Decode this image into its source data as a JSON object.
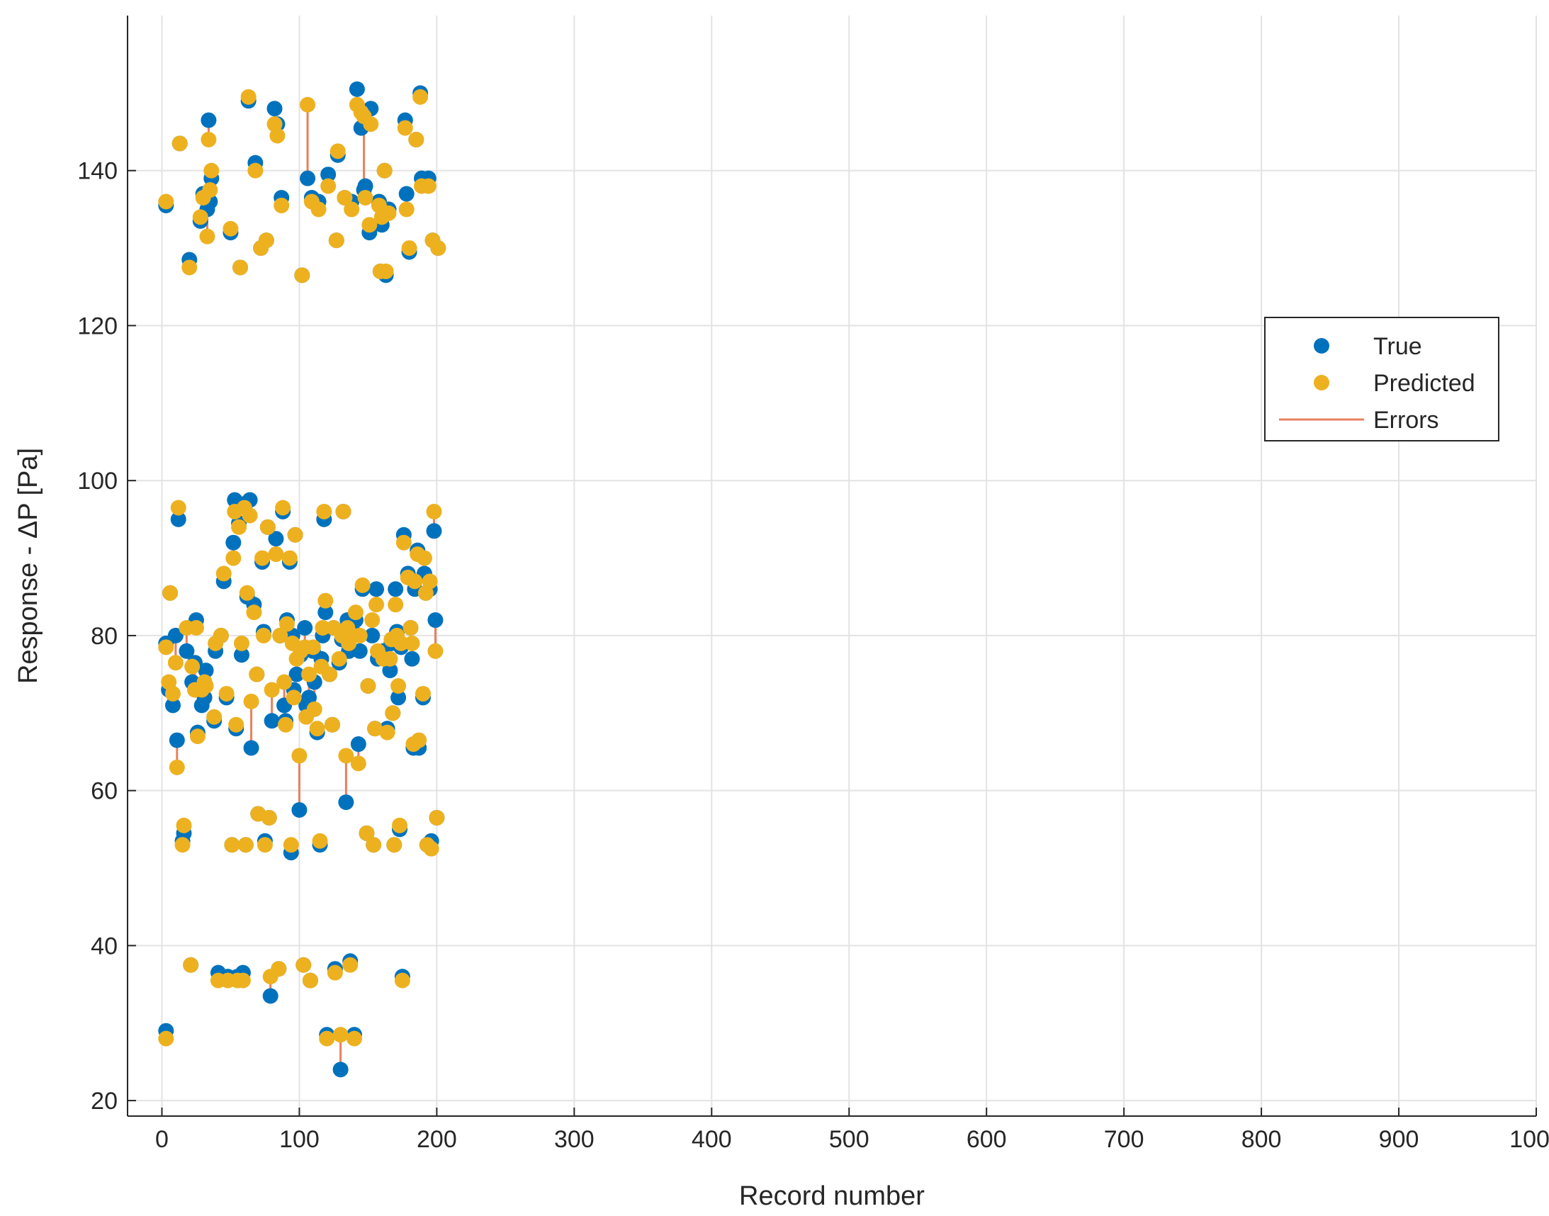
{
  "chart_data": {
    "type": "scatter",
    "title": "",
    "xlabel": "Record number",
    "ylabel": "Response - ΔP [Pa]",
    "xlim": [
      -25,
      1000
    ],
    "ylim": [
      18,
      160
    ],
    "xticks": [
      0,
      100,
      200,
      300,
      400,
      500,
      600,
      700,
      800,
      900,
      1000
    ],
    "yticks": [
      20,
      40,
      60,
      80,
      100,
      120,
      140
    ],
    "xtick_labels": [
      "0",
      "100",
      "200",
      "300",
      "400",
      "500",
      "600",
      "700",
      "800",
      "900",
      "1000"
    ],
    "ytick_labels": [
      "20",
      "40",
      "60",
      "80",
      "100",
      "120",
      "140"
    ],
    "grid": true,
    "legend": {
      "position": "right-middle",
      "entries": [
        {
          "label": "True",
          "color": "#0072BD",
          "marker": "circle"
        },
        {
          "label": "Predicted",
          "color": "#EDB120",
          "marker": "circle"
        },
        {
          "label": "Errors",
          "color": "#E8805C",
          "marker": "line"
        }
      ]
    },
    "colors": {
      "true": "#0072BD",
      "predicted": "#EDB120",
      "errors": "#E8805C",
      "grid": "#e3e3e3",
      "axis": "#262626"
    },
    "series": [
      {
        "name": "True",
        "role": "true"
      },
      {
        "name": "Predicted",
        "role": "predicted"
      },
      {
        "name": "Errors",
        "role": "errors"
      }
    ],
    "points": [
      [
        3,
        135.5,
        136
      ],
      [
        3,
        79,
        78.5
      ],
      [
        3,
        29,
        28
      ],
      [
        5,
        73,
        74
      ],
      [
        6,
        85.5,
        85.5
      ],
      [
        8,
        71,
        72.5
      ],
      [
        10,
        80,
        76.5
      ],
      [
        11,
        66.5,
        63
      ],
      [
        12,
        95,
        96.5
      ],
      [
        13,
        143.5,
        143.5
      ],
      [
        15,
        53.5,
        53
      ],
      [
        16,
        54.5,
        55.5
      ],
      [
        18,
        78,
        81
      ],
      [
        20,
        128.5,
        127.5
      ],
      [
        21,
        37.5,
        37.5
      ],
      [
        22,
        74,
        76
      ],
      [
        24,
        76.5,
        73
      ],
      [
        25,
        82,
        81
      ],
      [
        26,
        67.5,
        67
      ],
      [
        28,
        133.5,
        134
      ],
      [
        29,
        71,
        73
      ],
      [
        30,
        137,
        136.5
      ],
      [
        31,
        72,
        74
      ],
      [
        32,
        75.5,
        73.5
      ],
      [
        33,
        135,
        131.5
      ],
      [
        34,
        146.5,
        144
      ],
      [
        35,
        136,
        137.5
      ],
      [
        36,
        139,
        140
      ],
      [
        38,
        69,
        69.5
      ],
      [
        39,
        78,
        79
      ],
      [
        41,
        36.5,
        35.5
      ],
      [
        43,
        80,
        80
      ],
      [
        45,
        87,
        88
      ],
      [
        47,
        72,
        72.5
      ],
      [
        48,
        36,
        35.5
      ],
      [
        50,
        132,
        132.5
      ],
      [
        51,
        53,
        53
      ],
      [
        52,
        92,
        90
      ],
      [
        53,
        97.5,
        96
      ],
      [
        54,
        68,
        68.5
      ],
      [
        55,
        36,
        35.5
      ],
      [
        56,
        94.5,
        94
      ],
      [
        57,
        127.5,
        127.5
      ],
      [
        58,
        77.5,
        79
      ],
      [
        59,
        36.5,
        35.5
      ],
      [
        60,
        97,
        96.5
      ],
      [
        61,
        53,
        53
      ],
      [
        62,
        85,
        85.5
      ],
      [
        63,
        149,
        149.5
      ],
      [
        64,
        97.5,
        95.5
      ],
      [
        65,
        65.5,
        71.5
      ],
      [
        67,
        84,
        83
      ],
      [
        68,
        141,
        140
      ],
      [
        69,
        75,
        75
      ],
      [
        70,
        57,
        57
      ],
      [
        72,
        130,
        130
      ],
      [
        73,
        89.5,
        90
      ],
      [
        74,
        80.5,
        80
      ],
      [
        75,
        53.5,
        53
      ],
      [
        76,
        131,
        131
      ],
      [
        77,
        94,
        94
      ],
      [
        78,
        56.5,
        56.5
      ],
      [
        79,
        33.5,
        36
      ],
      [
        80,
        69,
        73
      ],
      [
        82,
        148,
        146
      ],
      [
        83,
        92.5,
        90.5
      ],
      [
        84,
        146,
        144.5
      ],
      [
        85,
        37,
        37
      ],
      [
        86,
        80,
        80
      ],
      [
        87,
        136.5,
        135.5
      ],
      [
        88,
        96,
        96.5
      ],
      [
        89,
        71,
        74
      ],
      [
        90,
        69,
        68.5
      ],
      [
        91,
        82,
        81.5
      ],
      [
        93,
        89.5,
        90
      ],
      [
        94,
        52,
        53
      ],
      [
        95,
        80,
        79
      ],
      [
        96,
        73,
        72
      ],
      [
        97,
        93,
        93
      ],
      [
        98,
        75,
        77
      ],
      [
        100,
        57.5,
        64.5
      ],
      [
        101,
        77.5,
        78
      ],
      [
        102,
        126.5,
        126.5
      ],
      [
        103,
        37.5,
        37.5
      ],
      [
        104,
        81,
        78.5
      ],
      [
        105,
        71,
        69.5
      ],
      [
        106,
        139,
        148.5
      ],
      [
        107,
        72,
        75
      ],
      [
        108,
        35.5,
        35.5
      ],
      [
        109,
        136.5,
        136
      ],
      [
        110,
        78,
        78.5
      ],
      [
        111,
        74,
        70.5
      ],
      [
        113,
        67.5,
        68
      ],
      [
        114,
        136,
        135
      ],
      [
        115,
        53,
        53.5
      ],
      [
        116,
        77,
        76
      ],
      [
        117,
        80,
        81
      ],
      [
        118,
        95,
        96
      ],
      [
        119,
        83,
        84.5
      ],
      [
        120,
        28.5,
        28
      ],
      [
        121,
        139.5,
        138
      ],
      [
        122,
        75,
        75
      ],
      [
        124,
        68.5,
        68.5
      ],
      [
        125,
        81,
        81
      ],
      [
        126,
        37,
        36.5
      ],
      [
        127,
        131,
        131
      ],
      [
        128,
        142,
        142.5
      ],
      [
        129,
        76.5,
        77
      ],
      [
        130,
        24,
        28.5
      ],
      [
        131,
        79.5,
        80
      ],
      [
        132,
        96,
        96
      ],
      [
        133,
        136.5,
        136.5
      ],
      [
        134,
        58.5,
        64.5
      ],
      [
        135,
        82,
        81
      ],
      [
        136,
        78,
        79
      ],
      [
        137,
        38,
        37.5
      ],
      [
        138,
        136,
        135
      ],
      [
        139,
        80.5,
        80
      ],
      [
        140,
        28.5,
        28
      ],
      [
        141,
        82,
        83
      ],
      [
        142,
        150.5,
        148.5
      ],
      [
        143,
        66,
        63.5
      ],
      [
        144,
        78,
        80
      ],
      [
        145,
        145.5,
        147.5
      ],
      [
        146,
        86,
        86.5
      ],
      [
        147,
        137.5,
        147
      ],
      [
        148,
        138,
        136.5
      ],
      [
        149,
        54.5,
        54.5
      ],
      [
        150,
        73.5,
        73.5
      ],
      [
        151,
        132,
        133
      ],
      [
        152,
        148,
        146
      ],
      [
        153,
        80,
        82
      ],
      [
        154,
        53,
        53
      ],
      [
        155,
        68,
        68
      ],
      [
        156,
        86,
        84
      ],
      [
        157,
        77,
        78
      ],
      [
        158,
        136,
        135.5
      ],
      [
        159,
        127,
        127
      ],
      [
        160,
        133,
        134
      ],
      [
        161,
        78,
        77
      ],
      [
        162,
        140,
        140
      ],
      [
        163,
        126.5,
        127
      ],
      [
        164,
        68,
        67.5
      ],
      [
        165,
        135,
        134.5
      ],
      [
        166,
        75.5,
        77
      ],
      [
        167,
        79,
        79.5
      ],
      [
        168,
        70,
        70
      ],
      [
        169,
        53,
        53
      ],
      [
        170,
        86,
        84
      ],
      [
        171,
        80.5,
        80
      ],
      [
        172,
        72,
        73.5
      ],
      [
        173,
        55,
        55.5
      ],
      [
        174,
        78.5,
        79
      ],
      [
        175,
        36,
        35.5
      ],
      [
        176,
        93,
        92
      ],
      [
        177,
        146.5,
        145.5
      ],
      [
        178,
        137,
        135
      ],
      [
        179,
        88,
        87.5
      ],
      [
        180,
        129.5,
        130
      ],
      [
        181,
        81,
        81
      ],
      [
        182,
        77,
        79
      ],
      [
        183,
        65.5,
        66
      ],
      [
        184,
        86,
        87
      ],
      [
        185,
        144,
        144
      ],
      [
        186,
        91,
        90.5
      ],
      [
        187,
        65.5,
        66.5
      ],
      [
        188,
        150,
        149.5
      ],
      [
        189,
        139,
        138
      ],
      [
        190,
        72,
        72.5
      ],
      [
        191,
        88,
        90
      ],
      [
        192,
        85.5,
        85.5
      ],
      [
        193,
        53,
        53
      ],
      [
        194,
        139,
        138
      ],
      [
        195,
        86,
        87
      ],
      [
        196,
        53.5,
        52.5
      ],
      [
        197,
        131,
        131
      ],
      [
        198,
        93.5,
        96
      ],
      [
        199,
        82,
        78
      ],
      [
        200,
        56.5,
        56.5
      ],
      [
        201,
        130,
        130
      ]
    ]
  }
}
